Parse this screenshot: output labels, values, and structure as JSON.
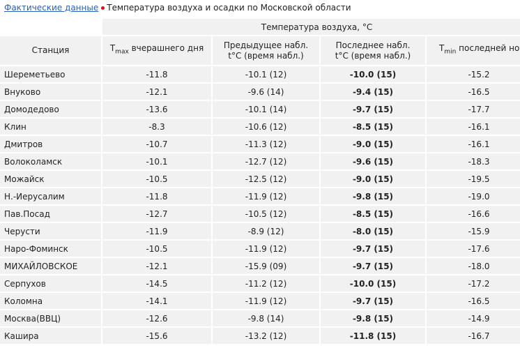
{
  "header": {
    "link": "Фактические данные",
    "title": "Температура воздуха и осадки по Московской области"
  },
  "table": {
    "group_header": "Температура воздуха, °С",
    "columns": {
      "station": "Станция",
      "tmax": {
        "symbol": "T",
        "sub": "max",
        "text": "вчерашнего дня"
      },
      "prev": {
        "line1": "Предыдущее набл.",
        "line2": "t°C (время набл.)"
      },
      "last": {
        "line1": "Последнее набл.",
        "line2": "t°C (время набл.)"
      },
      "tmin": {
        "symbol": "T",
        "sub": "min",
        "text": "последней ночи"
      }
    },
    "rows": [
      [
        "Шереметьево",
        "-11.8",
        "-10.1 (12)",
        "-10.0 (15)",
        "-15.2"
      ],
      [
        "Внуково",
        "-12.1",
        "-9.6 (14)",
        "-9.4 (15)",
        "-16.5"
      ],
      [
        "Домодедово",
        "-13.6",
        "-10.1 (14)",
        "-9.7 (15)",
        "-17.7"
      ],
      [
        "Клин",
        "-8.3",
        "-10.6 (12)",
        "-8.5 (15)",
        "-16.1"
      ],
      [
        "Дмитров",
        "-10.7",
        "-11.3 (12)",
        "-9.0 (15)",
        "-16.1"
      ],
      [
        "Волоколамск",
        "-10.1",
        "-12.7 (12)",
        "-9.6 (15)",
        "-18.3"
      ],
      [
        "Можайск",
        "-10.5",
        "-12.5 (12)",
        "-9.0 (15)",
        "-19.5"
      ],
      [
        "Н.-Иерусалим",
        "-11.8",
        "-11.9 (12)",
        "-9.8 (15)",
        "-19.0"
      ],
      [
        "Пав.Посад",
        "-12.7",
        "-10.5 (12)",
        "-8.5 (15)",
        "-16.6"
      ],
      [
        "Черусти",
        "-11.9",
        "-8.9 (12)",
        "-8.0 (15)",
        "-15.9"
      ],
      [
        "Наро-Фоминск",
        "-10.5",
        "-11.9 (12)",
        "-9.7 (15)",
        "-17.6"
      ],
      [
        "МИХАЙЛОВСКОЕ",
        "-12.1",
        "-15.9 (09)",
        "-9.7 (15)",
        "-18.0"
      ],
      [
        "Серпухов",
        "-14.5",
        "-11.2 (12)",
        "-10.0 (15)",
        "-17.2"
      ],
      [
        "Коломна",
        "-14.1",
        "-11.9 (12)",
        "-9.7 (15)",
        "-16.5"
      ],
      [
        "Москва(ВВЦ)",
        "-12.6",
        "-9.8 (14)",
        "-9.8 (15)",
        "-14.9"
      ],
      [
        "Кашира",
        "-15.6",
        "-13.2 (12)",
        "-11.8 (15)",
        "-16.7"
      ]
    ]
  }
}
